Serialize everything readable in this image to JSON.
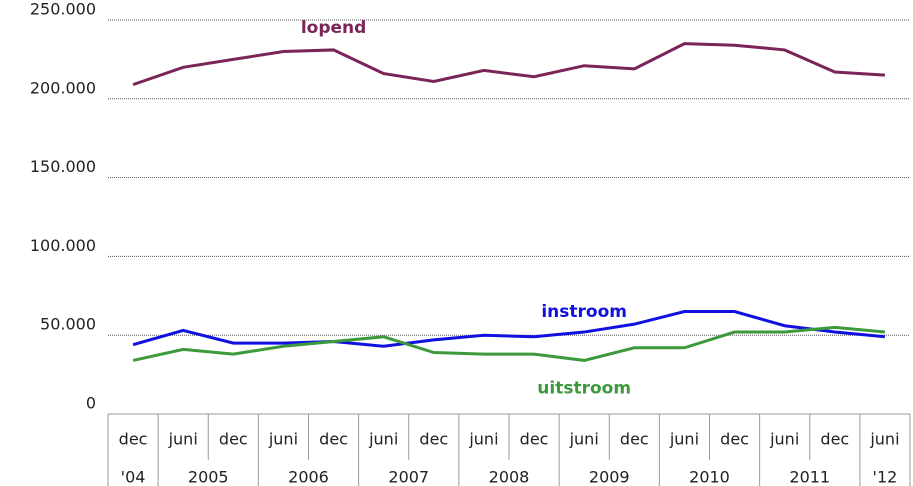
{
  "chart_data": {
    "type": "line",
    "categories": [
      "dec",
      "juni",
      "dec",
      "juni",
      "dec",
      "juni",
      "dec",
      "juni",
      "dec",
      "juni",
      "dec",
      "juni",
      "dec",
      "juni",
      "dec",
      "juni"
    ],
    "groups": [
      "'04",
      "2005",
      "2006",
      "2007",
      "2008",
      "2009",
      "2010",
      "2011",
      "'12"
    ],
    "series": [
      {
        "name": "lopend",
        "color": "#7b2458",
        "values": [
          209000,
          220000,
          225000,
          230000,
          231000,
          216000,
          211000,
          218000,
          214000,
          221000,
          219000,
          235000,
          234000,
          231000,
          217000,
          215000
        ]
      },
      {
        "name": "instroom",
        "color": "#1010e0",
        "values": [
          44000,
          53000,
          45000,
          45000,
          46000,
          43000,
          47000,
          50000,
          49000,
          52000,
          57000,
          65000,
          65000,
          56000,
          52000,
          49000
        ]
      },
      {
        "name": "uitstroom",
        "color": "#3c9a3c",
        "values": [
          34000,
          41000,
          38000,
          43000,
          46000,
          49000,
          39000,
          38000,
          38000,
          34000,
          42000,
          42000,
          52000,
          52000,
          55000,
          52000
        ]
      }
    ],
    "ylim": [
      0,
      250000
    ],
    "yticks": [
      0,
      {
        "value": 50000,
        "label": "50.000"
      },
      {
        "value": 100000,
        "label": "100.000"
      },
      {
        "value": 150000,
        "label": "150.000"
      },
      {
        "value": 200000,
        "label": "200.000"
      },
      {
        "value": 250000,
        "label": "250.000"
      }
    ],
    "grid": true
  }
}
